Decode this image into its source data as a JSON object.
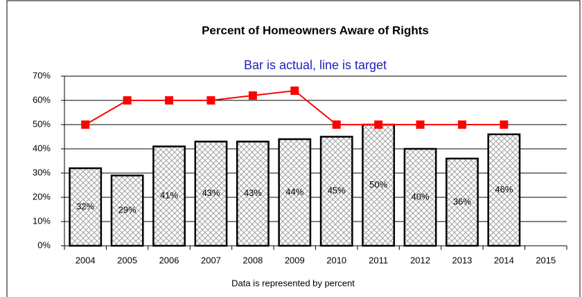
{
  "chart_data": {
    "type": "bar",
    "title": "Percent of Homeowners Aware of Rights",
    "subtitle": "Bar is actual, line is target",
    "x_label": "Data is represented by percent",
    "categories": [
      "2004",
      "2005",
      "2006",
      "2007",
      "2008",
      "2009",
      "2010",
      "2011",
      "2012",
      "2013",
      "2014",
      "2015"
    ],
    "series": [
      {
        "type": "bar",
        "color": "#a0a0a0",
        "values": [
          32,
          29,
          41,
          43,
          43,
          44,
          45,
          50,
          40,
          36,
          46,
          null
        ],
        "value_labels": [
          "32%",
          "29%",
          "41%",
          "43%",
          "43%",
          "44%",
          "45%",
          "50%",
          "40%",
          "36%",
          "46%",
          null
        ]
      },
      {
        "type": "line",
        "color": "#ff0000",
        "values": [
          50,
          60,
          60,
          60,
          62,
          64,
          50,
          50,
          50,
          50,
          50,
          null
        ]
      }
    ],
    "ylim": [
      0,
      70
    ],
    "yticks": [
      {
        "value": 0,
        "label": "0%"
      },
      {
        "value": 10,
        "label": "10%"
      },
      {
        "value": 20,
        "label": "20%"
      },
      {
        "value": 30,
        "label": "30%"
      },
      {
        "value": 40,
        "label": "40%"
      },
      {
        "value": 50,
        "label": "50%"
      },
      {
        "value": 60,
        "label": "60%"
      },
      {
        "value": 70,
        "label": "70%"
      }
    ],
    "grid": true
  }
}
